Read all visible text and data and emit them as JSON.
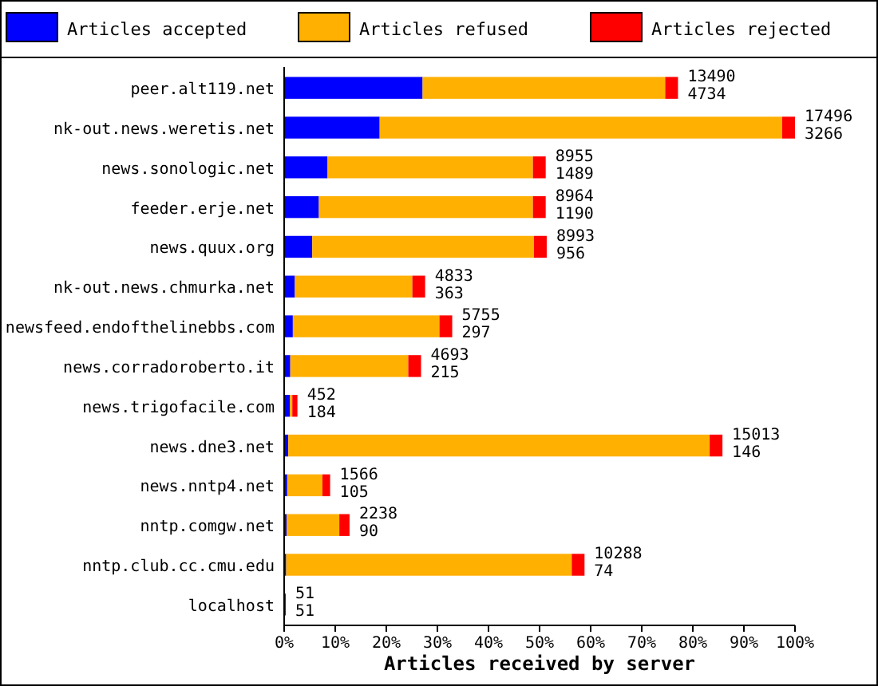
{
  "chart_data": {
    "type": "bar",
    "orientation": "horizontal",
    "stacked": true,
    "xlabel": "Articles received by server",
    "legend": "top",
    "categories": [
      "peer.alt119.net",
      "nk-out.news.weretis.net",
      "news.sonologic.net",
      "feeder.erje.net",
      "news.quux.org",
      "nk-out.news.chmurka.net",
      "newsfeed.endofthelinebbs.com",
      "news.corradoroberto.it",
      "news.trigofacile.com",
      "news.dne3.net",
      "news.nntp4.net",
      "nntp.comgw.net",
      "nntp.club.cc.cmu.edu",
      "localhost"
    ],
    "series": [
      {
        "name": "Articles accepted",
        "color": "#0000ff",
        "values": [
          27.1,
          18.7,
          8.5,
          6.8,
          5.5,
          2.1,
          1.7,
          1.2,
          1.1,
          0.8,
          0.6,
          0.5,
          0.4,
          0.3
        ]
      },
      {
        "name": "Articles refused",
        "color": "#ffb000",
        "values": [
          47.5,
          78.8,
          40.2,
          41.9,
          43.4,
          23.0,
          28.7,
          23.1,
          0.5,
          82.5,
          6.9,
          10.3,
          55.9,
          0
        ]
      },
      {
        "name": "Articles rejected",
        "color": "#ff0000",
        "values": [
          2.5,
          2.5,
          2.5,
          2.5,
          2.5,
          2.5,
          2.5,
          2.5,
          1.0,
          2.5,
          1.5,
          2.0,
          2.5,
          0
        ]
      }
    ],
    "annotations": [
      {
        "text": "13490",
        "x": 77.1,
        "y": "peer.alt119.net"
      },
      {
        "text": "4734",
        "x": 77.1,
        "y": "peer.alt119.net"
      },
      {
        "text": "17496",
        "x": 100,
        "y": "nk-out.news.weretis.net"
      },
      {
        "text": "3266",
        "x": 100,
        "y": "nk-out.news.weretis.net"
      },
      {
        "text": "8955",
        "x": 51.2,
        "y": "news.sonologic.net"
      },
      {
        "text": "1489",
        "x": 51.2,
        "y": "news.sonologic.net"
      },
      {
        "text": "8964",
        "x": 51.2,
        "y": "feeder.erje.net"
      },
      {
        "text": "1190",
        "x": 51.2,
        "y": "feeder.erje.net"
      },
      {
        "text": "8993",
        "x": 51.4,
        "y": "news.quux.org"
      },
      {
        "text": "956",
        "x": 51.4,
        "y": "news.quux.org"
      },
      {
        "text": "4833",
        "x": 27.6,
        "y": "nk-out.news.chmurka.net"
      },
      {
        "text": "363",
        "x": 27.6,
        "y": "nk-out.news.chmurka.net"
      },
      {
        "text": "5755",
        "x": 32.9,
        "y": "newsfeed.endofthelinebbs.com"
      },
      {
        "text": "297",
        "x": 32.9,
        "y": "newsfeed.endofthelinebbs.com"
      },
      {
        "text": "4693",
        "x": 26.8,
        "y": "news.corradoroberto.it"
      },
      {
        "text": "215",
        "x": 26.8,
        "y": "news.corradoroberto.it"
      },
      {
        "text": "452",
        "x": 2.6,
        "y": "news.trigofacile.com"
      },
      {
        "text": "184",
        "x": 2.6,
        "y": "news.trigofacile.com"
      },
      {
        "text": "15013",
        "x": 85.8,
        "y": "news.dne3.net"
      },
      {
        "text": "146",
        "x": 85.8,
        "y": "news.dne3.net"
      },
      {
        "text": "1566",
        "x": 9.0,
        "y": "news.nntp4.net"
      },
      {
        "text": "105",
        "x": 9.0,
        "y": "news.nntp4.net"
      },
      {
        "text": "2238",
        "x": 12.8,
        "y": "nntp.comgw.net"
      },
      {
        "text": "90",
        "x": 12.8,
        "y": "nntp.comgw.net"
      },
      {
        "text": "10288",
        "x": 58.8,
        "y": "nntp.club.cc.cmu.edu"
      },
      {
        "text": "74",
        "x": 58.8,
        "y": "nntp.club.cc.cmu.edu"
      },
      {
        "text": "51",
        "x": 0.3,
        "y": "localhost"
      },
      {
        "text": "51",
        "x": 0.3,
        "y": "localhost"
      }
    ],
    "xlim": [
      0,
      100
    ],
    "xticks": [
      {
        "value": 0,
        "label": "0%"
      },
      {
        "value": 10,
        "label": "10%"
      },
      {
        "value": 20,
        "label": "20%"
      },
      {
        "value": 30,
        "label": "30%"
      },
      {
        "value": 40,
        "label": "40%"
      },
      {
        "value": 50,
        "label": "50%"
      },
      {
        "value": 60,
        "label": "60%"
      },
      {
        "value": 70,
        "label": "70%"
      },
      {
        "value": 80,
        "label": "80%"
      },
      {
        "value": 90,
        "label": "90%"
      },
      {
        "value": 100,
        "label": "100%"
      }
    ]
  }
}
